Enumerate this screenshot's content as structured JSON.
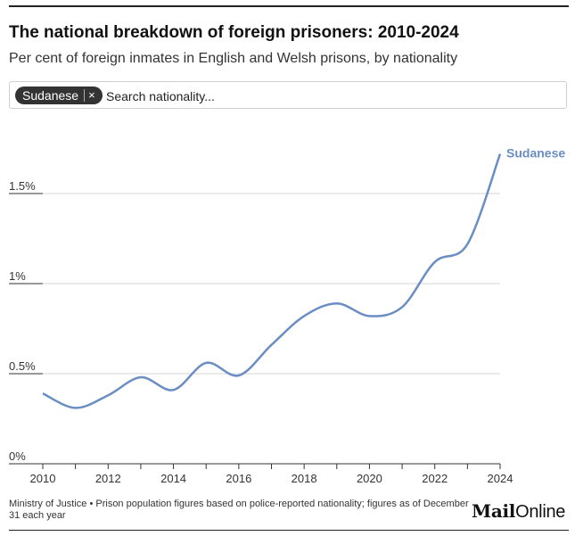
{
  "header": {
    "title": "The national breakdown of foreign prisoners: 2010-2024",
    "subtitle": "Per cent of foreign inmates in English and Welsh prisons, by nationality"
  },
  "search": {
    "chip_label": "Sudanese",
    "chip_remove": "×",
    "placeholder": "Search nationality..."
  },
  "footer": {
    "source": "Ministry of Justice • Prison population figures based on police-reported nationality; figures as of December 31 each year",
    "logo_mail": "Mail",
    "logo_online": "Online"
  },
  "chart_data": {
    "type": "line",
    "title": "The national breakdown of foreign prisoners: 2010-2024",
    "xlabel": "",
    "ylabel": "",
    "x_ticks": [
      "2010",
      "2012",
      "2014",
      "2016",
      "2018",
      "2020",
      "2022",
      "2024"
    ],
    "y_ticks": [
      "0%",
      "0.5%",
      "1%",
      "1.5%"
    ],
    "xlim": [
      2010,
      2024
    ],
    "ylim": [
      0,
      1.9
    ],
    "grid": true,
    "series": [
      {
        "name": "Sudanese",
        "color": "#6a8ec4",
        "x": [
          2010,
          2011,
          2012,
          2013,
          2014,
          2015,
          2016,
          2017,
          2018,
          2019,
          2020,
          2021,
          2022,
          2023,
          2024
        ],
        "values": [
          0.39,
          0.31,
          0.38,
          0.48,
          0.41,
          0.56,
          0.49,
          0.66,
          0.82,
          0.89,
          0.82,
          0.87,
          1.12,
          1.22,
          1.72
        ]
      }
    ]
  }
}
